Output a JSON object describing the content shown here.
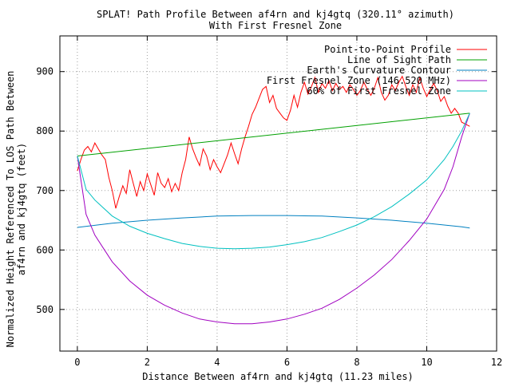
{
  "chart_data": {
    "type": "line",
    "title": "SPLAT! Path Profile Between af4rn and kj4gtq (320.11° azimuth)",
    "subtitle": "With First Fresnel Zone",
    "xlabel": "Distance Between af4rn and kj4gtq (11.23 miles)",
    "ylabel_line1": "Normalized Height Referenced To LOS Path Between",
    "ylabel_line2": "af4rn and kj4gtq (feet)",
    "xlim": [
      -0.5,
      12
    ],
    "ylim": [
      430,
      960
    ],
    "x_ticks": [
      "0",
      "2",
      "4",
      "6",
      "8",
      "10",
      "12"
    ],
    "y_ticks": [
      "500",
      "600",
      "700",
      "800",
      "900"
    ],
    "grid": true,
    "legend_position": "top-right",
    "series": [
      {
        "name": "Point-to-Point Profile",
        "color": "#ff0000",
        "x": [
          0,
          0.1,
          0.2,
          0.3,
          0.4,
          0.5,
          0.6,
          0.7,
          0.8,
          0.9,
          1.0,
          1.1,
          1.2,
          1.3,
          1.4,
          1.5,
          1.6,
          1.7,
          1.8,
          1.9,
          2.0,
          2.1,
          2.2,
          2.3,
          2.4,
          2.5,
          2.6,
          2.7,
          2.8,
          2.9,
          3.0,
          3.1,
          3.2,
          3.3,
          3.4,
          3.5,
          3.6,
          3.7,
          3.8,
          3.9,
          4.0,
          4.1,
          4.2,
          4.3,
          4.4,
          4.5,
          4.6,
          4.7,
          4.8,
          4.9,
          5.0,
          5.1,
          5.2,
          5.3,
          5.4,
          5.5,
          5.6,
          5.7,
          5.8,
          5.9,
          6.0,
          6.1,
          6.2,
          6.3,
          6.4,
          6.5,
          6.6,
          6.7,
          6.8,
          6.9,
          7.0,
          7.1,
          7.2,
          7.3,
          7.4,
          7.5,
          7.6,
          7.7,
          7.8,
          7.9,
          8.0,
          8.1,
          8.2,
          8.3,
          8.4,
          8.5,
          8.6,
          8.7,
          8.8,
          8.9,
          9.0,
          9.1,
          9.2,
          9.3,
          9.4,
          9.5,
          9.6,
          9.7,
          9.8,
          9.9,
          10.0,
          10.1,
          10.2,
          10.3,
          10.4,
          10.5,
          10.6,
          10.7,
          10.8,
          10.9,
          11.0,
          11.1,
          11.23
        ],
        "values": [
          733,
          752,
          768,
          774,
          765,
          780,
          770,
          760,
          752,
          722,
          700,
          670,
          690,
          708,
          695,
          735,
          712,
          690,
          715,
          700,
          728,
          710,
          692,
          730,
          712,
          705,
          720,
          698,
          712,
          700,
          730,
          752,
          790,
          770,
          755,
          742,
          770,
          758,
          735,
          752,
          740,
          730,
          745,
          760,
          780,
          762,
          745,
          770,
          790,
          808,
          828,
          840,
          855,
          870,
          875,
          848,
          860,
          838,
          830,
          822,
          818,
          835,
          860,
          840,
          865,
          882,
          862,
          875,
          890,
          865,
          880,
          872,
          885,
          868,
          880,
          870,
          875,
          865,
          878,
          870,
          860,
          868,
          882,
          870,
          860,
          872,
          890,
          865,
          852,
          860,
          878,
          868,
          882,
          892,
          875,
          860,
          878,
          865,
          890,
          872,
          858,
          870,
          880,
          868,
          850,
          858,
          842,
          830,
          838,
          830,
          815,
          812,
          808
        ]
      },
      {
        "name": "Line of Sight Path",
        "color": "#00a000",
        "x": [
          0,
          11.23
        ],
        "values": [
          758,
          830
        ]
      },
      {
        "name": "Earth's Curvature Contour",
        "color": "#0080c0",
        "x": [
          0,
          1,
          2,
          3,
          4,
          5,
          5.6,
          6,
          7,
          8,
          9,
          10,
          11,
          11.23
        ],
        "values": [
          638,
          645,
          650,
          654,
          657,
          658,
          658,
          658,
          657,
          654,
          650,
          645,
          639,
          637
        ]
      },
      {
        "name": "First Fresnel Zone (146.520 MHz)",
        "color": "#a000c0",
        "x": [
          0,
          0.25,
          0.5,
          1,
          1.5,
          2,
          2.5,
          3,
          3.5,
          4,
          4.5,
          5,
          5.5,
          6,
          6.5,
          7,
          7.5,
          8,
          8.5,
          9,
          9.5,
          10,
          10.5,
          10.75,
          11,
          11.23
        ],
        "values": [
          758,
          660,
          625,
          580,
          548,
          524,
          507,
          494,
          484,
          479,
          476,
          476,
          479,
          484,
          492,
          502,
          517,
          536,
          558,
          584,
          616,
          652,
          702,
          740,
          790,
          830
        ]
      },
      {
        "name": "60% of First Fresnel Zone",
        "color": "#00c0c0",
        "x": [
          0,
          0.25,
          0.5,
          1,
          1.5,
          2,
          2.5,
          3,
          3.5,
          4,
          4.5,
          5,
          5.5,
          6,
          6.5,
          7,
          7.5,
          8,
          8.5,
          9,
          9.5,
          10,
          10.5,
          10.75,
          11,
          11.23
        ],
        "values": [
          758,
          702,
          684,
          657,
          640,
          628,
          619,
          611,
          606,
          603,
          602,
          603,
          605,
          609,
          614,
          621,
          631,
          642,
          656,
          673,
          694,
          718,
          752,
          774,
          800,
          830
        ]
      }
    ]
  }
}
